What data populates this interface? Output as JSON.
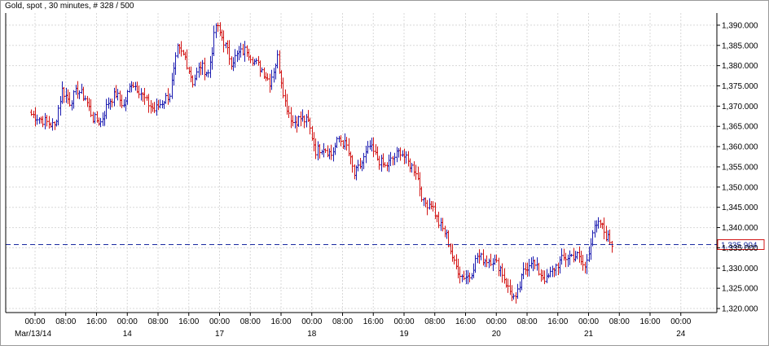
{
  "header": {
    "title": "Gold, spot , 30 minutes, # 328 / 500"
  },
  "colors": {
    "up": "#1b1bb0",
    "down": "#d21414",
    "grid": "#d8d8d8",
    "axis": "#000000",
    "price_line": "#1a2aa0"
  },
  "chart_data": {
    "type": "ohlc",
    "title": "Gold, spot , 30 minutes, # 328 / 500",
    "instrument": "Gold, spot",
    "interval": "30 minutes",
    "bar_count": "# 328 / 500",
    "grid": true,
    "price_axis_position": "right",
    "ylim": [
      1319,
      1393
    ],
    "yticks": [
      1320,
      1325,
      1330,
      1335,
      1340,
      1345,
      1350,
      1355,
      1360,
      1365,
      1370,
      1375,
      1380,
      1385,
      1390
    ],
    "ytick_labels": [
      "1,320.000",
      "1,325.000",
      "1,330.000",
      "1,335.000",
      "1,340.000",
      "1,345.000",
      "1,350.000",
      "1,355.000",
      "1,360.000",
      "1,365.000",
      "1,370.000",
      "1,375.000",
      "1,380.000",
      "1,385.000",
      "1,390.000"
    ],
    "xticks": [
      {
        "label": "00:00",
        "day": "Mar/13/14"
      },
      {
        "label": "08:00",
        "day": ""
      },
      {
        "label": "16:00",
        "day": ""
      },
      {
        "label": "00:00",
        "day": "14"
      },
      {
        "label": "08:00",
        "day": ""
      },
      {
        "label": "16:00",
        "day": ""
      },
      {
        "label": "00:00",
        "day": "17"
      },
      {
        "label": "08:00",
        "day": ""
      },
      {
        "label": "16:00",
        "day": ""
      },
      {
        "label": "00:00",
        "day": "18"
      },
      {
        "label": "08:00",
        "day": ""
      },
      {
        "label": "16:00",
        "day": ""
      },
      {
        "label": "00:00",
        "day": "19"
      },
      {
        "label": "08:00",
        "day": ""
      },
      {
        "label": "16:00",
        "day": ""
      },
      {
        "label": "00:00",
        "day": "20"
      },
      {
        "label": "08:00",
        "day": ""
      },
      {
        "label": "16:00",
        "day": ""
      },
      {
        "label": "00:00",
        "day": "21"
      },
      {
        "label": "08:00",
        "day": ""
      },
      {
        "label": "16:00",
        "day": ""
      },
      {
        "label": "00:00",
        "day": "24"
      }
    ],
    "current_price": 1335.904,
    "current_price_label": "1,335.904",
    "bars_per_tick": 16,
    "bars_before_first_tick": 2,
    "anchors": [
      [
        0,
        1368
      ],
      [
        4,
        1367
      ],
      [
        8,
        1366
      ],
      [
        12,
        1365
      ],
      [
        16,
        1374
      ],
      [
        20,
        1371
      ],
      [
        24,
        1374
      ],
      [
        28,
        1372
      ],
      [
        32,
        1367
      ],
      [
        36,
        1366
      ],
      [
        40,
        1371
      ],
      [
        44,
        1373
      ],
      [
        48,
        1370
      ],
      [
        52,
        1376
      ],
      [
        56,
        1374
      ],
      [
        60,
        1371
      ],
      [
        64,
        1369
      ],
      [
        68,
        1371
      ],
      [
        72,
        1373
      ],
      [
        76,
        1384
      ],
      [
        80,
        1382
      ],
      [
        84,
        1376
      ],
      [
        88,
        1380
      ],
      [
        92,
        1378
      ],
      [
        96,
        1390
      ],
      [
        100,
        1386
      ],
      [
        104,
        1381
      ],
      [
        108,
        1383
      ],
      [
        112,
        1384
      ],
      [
        116,
        1381
      ],
      [
        120,
        1379
      ],
      [
        124,
        1376
      ],
      [
        128,
        1382
      ],
      [
        132,
        1371
      ],
      [
        136,
        1366
      ],
      [
        140,
        1367
      ],
      [
        144,
        1366
      ],
      [
        148,
        1359
      ],
      [
        152,
        1360
      ],
      [
        156,
        1358
      ],
      [
        160,
        1362
      ],
      [
        164,
        1360
      ],
      [
        168,
        1353
      ],
      [
        172,
        1356
      ],
      [
        176,
        1360
      ],
      [
        180,
        1357
      ],
      [
        184,
        1355
      ],
      [
        188,
        1357
      ],
      [
        192,
        1359
      ],
      [
        196,
        1356
      ],
      [
        200,
        1354
      ],
      [
        204,
        1346
      ],
      [
        208,
        1346
      ],
      [
        212,
        1341
      ],
      [
        216,
        1338
      ],
      [
        220,
        1331
      ],
      [
        224,
        1328
      ],
      [
        228,
        1328
      ],
      [
        232,
        1333
      ],
      [
        236,
        1332
      ],
      [
        240,
        1332
      ],
      [
        244,
        1330
      ],
      [
        248,
        1325
      ],
      [
        252,
        1322
      ],
      [
        256,
        1329
      ],
      [
        260,
        1332
      ],
      [
        264,
        1329
      ],
      [
        268,
        1327
      ],
      [
        272,
        1330
      ],
      [
        276,
        1332
      ],
      [
        280,
        1333
      ],
      [
        284,
        1333
      ],
      [
        288,
        1330
      ],
      [
        292,
        1339
      ],
      [
        296,
        1341
      ],
      [
        299,
        1338
      ],
      [
        302,
        1336
      ]
    ]
  }
}
